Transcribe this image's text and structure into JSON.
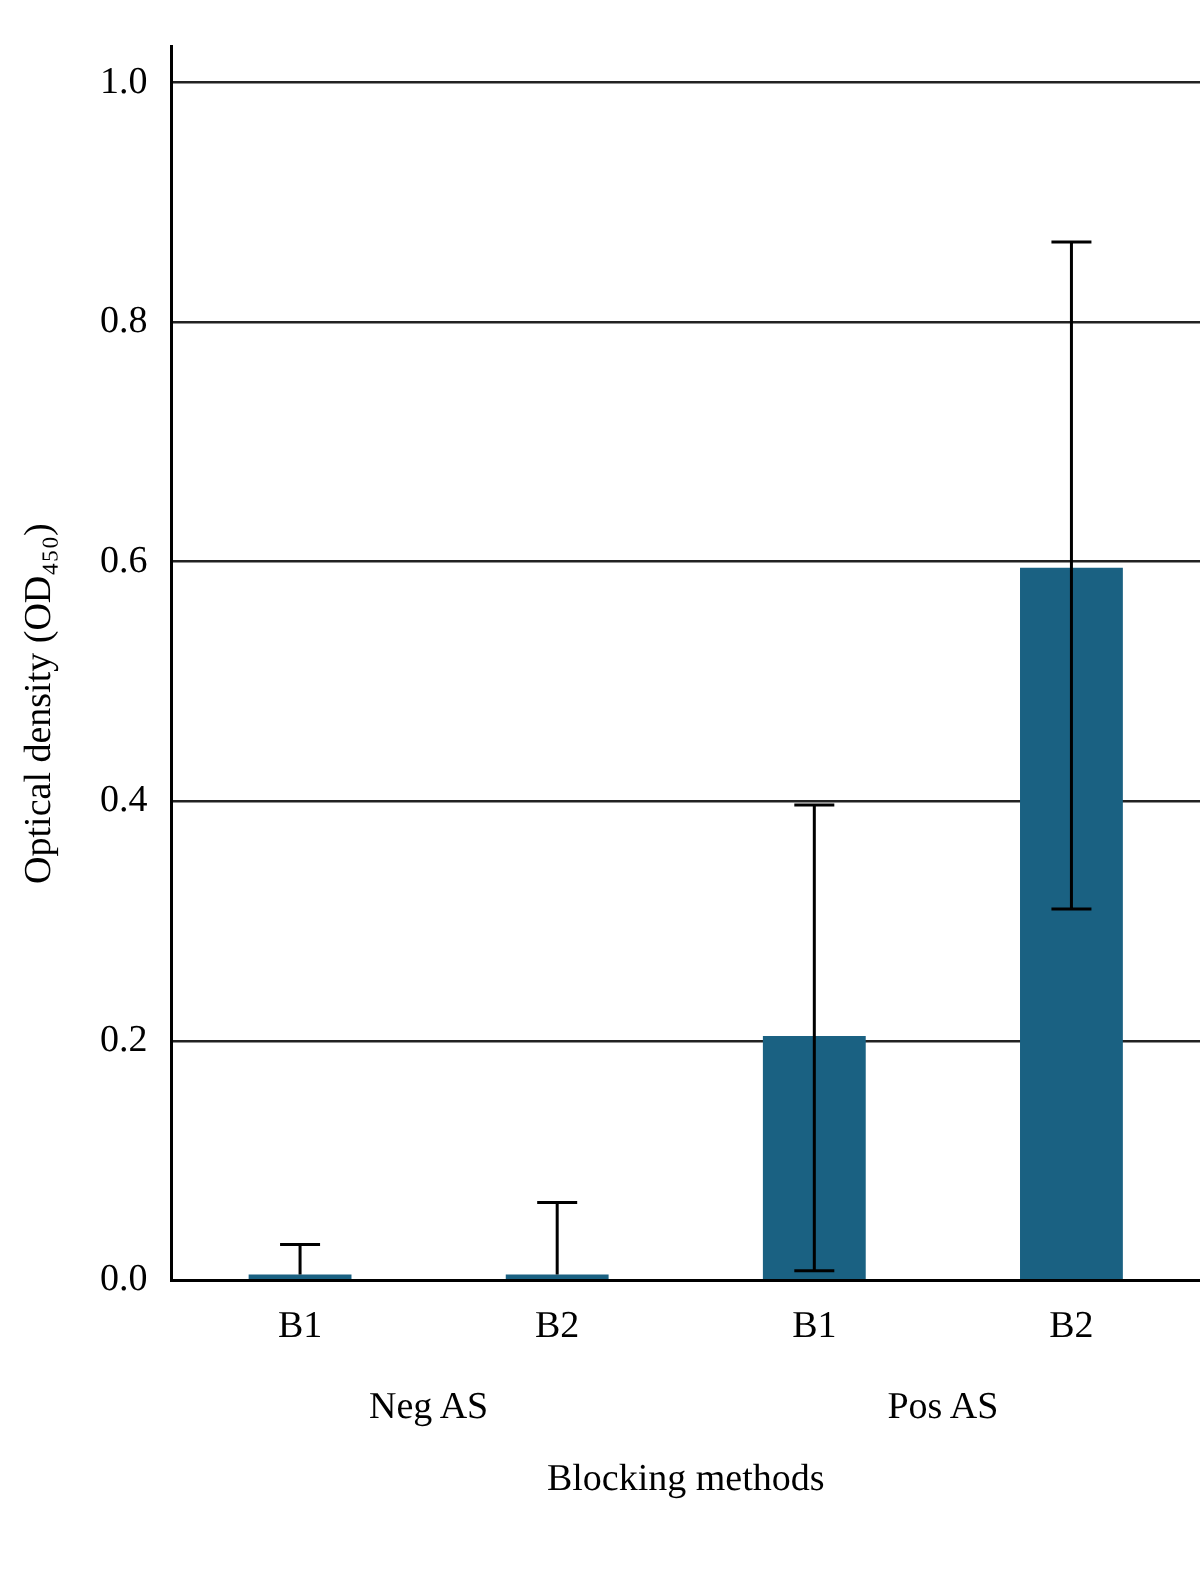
{
  "chart_data": {
    "type": "bar",
    "xlabel": "Blocking methods",
    "ylabel": "Optical density (OD₄₅₀)",
    "categories": [
      "B1",
      "B2",
      "B1",
      "B2"
    ],
    "values": [
      0.005,
      0.005,
      0.204,
      0.595
    ],
    "errors": [
      [
        0.005,
        0.03
      ],
      [
        0.005,
        0.065
      ],
      [
        0.008,
        0.397
      ],
      [
        0.31,
        0.867
      ]
    ],
    "color": "#1a6182",
    "ylim": [
      0,
      1.03
    ],
    "yticks": [
      {
        "value": 0,
        "label": "0.0"
      },
      0.2,
      0.4,
      0.6,
      0.8,
      {
        "value": 1,
        "label": "1.0"
      }
    ],
    "grid": "y",
    "annotations": [
      "Neg AS",
      "Pos AS"
    ]
  }
}
